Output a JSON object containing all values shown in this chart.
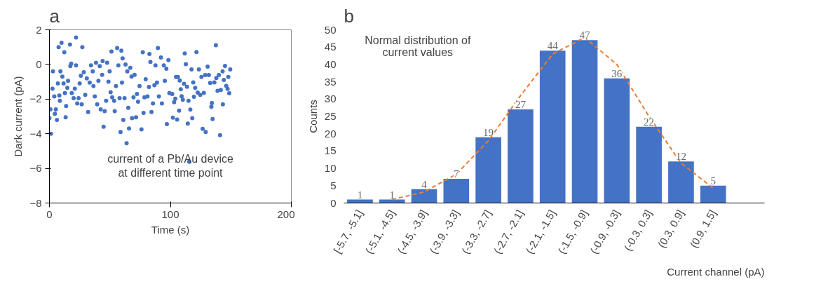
{
  "chart_data": [
    {
      "type": "scatter",
      "title": "a",
      "xlabel": "Time (s)",
      "ylabel": "Dark current (pA)",
      "xlim": [
        0,
        200
      ],
      "xticks": [
        0,
        100,
        200
      ],
      "ylim": [
        -8,
        2
      ],
      "yticks": [
        -8,
        -6,
        -4,
        -2,
        0,
        2
      ],
      "grid": false,
      "marker": "circle",
      "annotations": [
        "current of a Pb/Au device at different time point"
      ],
      "series": [
        {
          "color": "#4472c4",
          "x": [
            0,
            1.2,
            0.8,
            2.5,
            2.9,
            4,
            4.5,
            5.3,
            6.2,
            7,
            7.6,
            8.2,
            8.6,
            9.1,
            10,
            10.7,
            12.3,
            11.7,
            12.8,
            13.4,
            13.8,
            14.8,
            15.4,
            17,
            17.3,
            18,
            18.5,
            20,
            21,
            22,
            22,
            23,
            24.1,
            25,
            26,
            27.2,
            26.7,
            28.4,
            29.6,
            30.9,
            32,
            33.3,
            34.4,
            35.8,
            36.4,
            37.5,
            38.5,
            39.5,
            40.5,
            41.6,
            42.4,
            43.6,
            44,
            44.8,
            45.7,
            46.9,
            47.7,
            48.8,
            49.8,
            50.6,
            51.3,
            51.9,
            53.5,
            54,
            55,
            56,
            57,
            58,
            58.8,
            59.5,
            60,
            60.5,
            61.1,
            62.1,
            62.9,
            63.8,
            64.4,
            65.2,
            65.8,
            66.9,
            67.9,
            68.3,
            69.5,
            70.4,
            71.6,
            72.4,
            73.3,
            74.5,
            76.1,
            77.2,
            77.8,
            78.6,
            79.6,
            81.1,
            82.3,
            82.7,
            83.5,
            84.4,
            85.6,
            86.8,
            87.7,
            88.9,
            89.7,
            90.5,
            92.2,
            93,
            94.6,
            95.4,
            96.7,
            97.1,
            98.4,
            99.2,
            101.5,
            102.1,
            103.1,
            104.1,
            104.7,
            105.6,
            106.2,
            107.2,
            107.8,
            108.6,
            109.3,
            110.3,
            111.3,
            111.9,
            112.8,
            113.8,
            114.4,
            115,
            115.6,
            116.5,
            117.5,
            118.1,
            118.9,
            119.5,
            120.5,
            121.6,
            122.6,
            123.6,
            124.7,
            125.7,
            126.7,
            127.7,
            128.8,
            129.2,
            130.8,
            131.8,
            132.9,
            133.9,
            134.3,
            134.9,
            136.4,
            137.6,
            138,
            139,
            140.1,
            141.1,
            141.7,
            143.2,
            143.4,
            144.2,
            145.2,
            146.2,
            147.3,
            147.9,
            148.7,
            149.5
          ],
          "values": [
            -3.1,
            -4.0,
            -2.6,
            -1.4,
            -0.4,
            -1.85,
            -2.85,
            -2.6,
            -3.2,
            -1.1,
            1.0,
            -1.8,
            -2.1,
            -0.4,
            1.25,
            -0.7,
            0.7,
            -1.1,
            -1.65,
            -3.05,
            -2.4,
            -1.35,
            -0.95,
            1.15,
            -0.1,
            0.05,
            -1.65,
            -1.95,
            -1.4,
            1.55,
            -0.05,
            -2.25,
            -1.95,
            -1.1,
            -0.65,
            1.0,
            -2.3,
            -0.45,
            -1.75,
            -0.8,
            -2.75,
            -1.05,
            -0.05,
            -0.4,
            -1.25,
            -1.85,
            0.1,
            -2.3,
            -0.95,
            -0.1,
            -2.6,
            -0.6,
            0.2,
            -3.6,
            -2.7,
            -2.1,
            0.1,
            -1.0,
            -0.4,
            -1.6,
            0.75,
            -1.9,
            -2.1,
            -2.7,
            -1.25,
            0.95,
            -0.05,
            -1.95,
            -3.9,
            0.8,
            -1.05,
            0.35,
            -3.2,
            -1.95,
            0.0,
            -4.55,
            -0.4,
            -2.5,
            -3.7,
            -0.2,
            -0.7,
            -3.1,
            -1.9,
            -0.6,
            -3.05,
            -1.7,
            -2.15,
            -1.25,
            -3.75,
            0.7,
            -2.8,
            -1.9,
            -0.85,
            -1.85,
            -1.3,
            0.6,
            0.15,
            -2.75,
            -2.25,
            -1.2,
            -0.05,
            -1.05,
            0.95,
            -1.85,
            0.4,
            -2.25,
            -0.05,
            -0.95,
            -0.25,
            -3.45,
            0.25,
            -1.65,
            -1.7,
            -3.07,
            -2.18,
            -1.98,
            -0.72,
            -3.18,
            -0.72,
            -2.67,
            -0.93,
            -1.43,
            -1.84,
            -2.04,
            -1.12,
            0.63,
            0.02,
            -1.29,
            -3.41,
            -2.1,
            -5.62,
            -2.61,
            -0.29,
            -3.1,
            -1.04,
            -1.87,
            -1.35,
            0.71,
            -1.62,
            -0.29,
            -1.75,
            -0.72,
            -3.72,
            -1.64,
            -0.61,
            -3.9,
            -0.13,
            -0.61,
            -1.07,
            -2.44,
            -2.23,
            -3.15,
            -1.04,
            1.11,
            -0.78,
            -1.52,
            -0.61,
            -4.08,
            -1.47,
            -0.4,
            -2.3,
            -0.89,
            -0.09,
            -1.24,
            -1.41,
            -0.72,
            -1.66,
            -0.29
          ]
        }
      ]
    },
    {
      "type": "bar",
      "title": "b",
      "xlabel": "Current channel (pA)",
      "ylabel": "Counts",
      "ylim": [
        0,
        50
      ],
      "yticks": [
        0,
        5,
        10,
        15,
        20,
        25,
        30,
        35,
        40,
        45,
        50
      ],
      "grid": false,
      "annotations": [
        "Normal distribution of current values"
      ],
      "categories": [
        "[-5.7, -5.1]",
        "(-5.1, -4.5]",
        "(-4.5, -3.9]",
        "(-3.9, -3.3]",
        "(-3.3, -2.7]",
        "(-2.7, -2.1]",
        "(-2.1, -1.5]",
        "(-1.5, -0.9]",
        "(-0.9, -0.3]",
        "(-0.3, 0.3]",
        "(0.3, 0.9]",
        "(0.9, 1.5]"
      ],
      "series": [
        {
          "type": "bar",
          "color": "#4472c4",
          "values": [
            1,
            1,
            4,
            7,
            19,
            27,
            44,
            47,
            36,
            22,
            12,
            5
          ],
          "value_labels": [
            "1",
            "1",
            "4",
            "7",
            "19",
            "27",
            "44",
            "47",
            "36",
            "22",
            "12",
            "5"
          ]
        },
        {
          "type": "line",
          "color": "#ed7d31",
          "line_style": "dashed",
          "values": [
            null,
            1,
            3.2,
            8.3,
            18,
            31,
            43,
            47.8,
            40,
            25,
            11.5,
            4.3
          ]
        }
      ]
    }
  ]
}
